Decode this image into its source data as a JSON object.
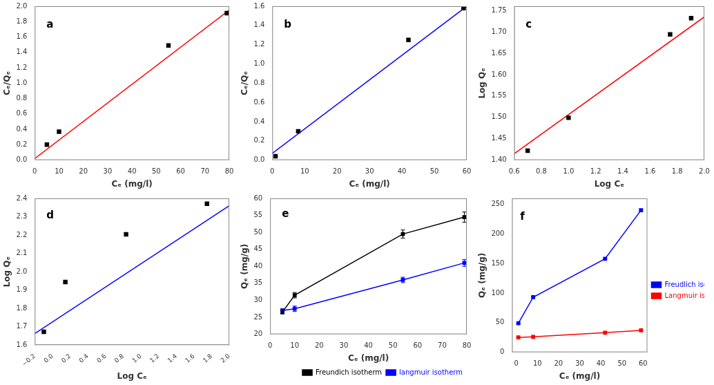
{
  "chart_data": [
    {
      "type": "scatter",
      "annotations": [
        "a"
      ],
      "xlabel": "Cₑ (mg/l)",
      "ylabel": "Cₑ/Qₑ",
      "xlim": [
        0,
        80
      ],
      "ylim": [
        0.0,
        2.0
      ],
      "xticks": [
        0,
        10,
        20,
        30,
        40,
        50,
        60,
        70,
        80
      ],
      "yticks": [
        {
          "value": 0.0,
          "label": "0.0"
        },
        0.2,
        0.4,
        0.6,
        0.8,
        {
          "value": 1.0,
          "label": "1.0"
        },
        1.2,
        1.4,
        1.6,
        1.8,
        {
          "value": 2.0,
          "label": "2.0"
        }
      ],
      "grid": false,
      "series": [
        {
          "type": "line",
          "x": [
            0,
            80
          ],
          "values": [
            0.02,
            1.95
          ],
          "color": "#ff0000",
          "line_style": "solid"
        },
        {
          "x": [
            5,
            10,
            55,
            79
          ],
          "values": [
            0.2,
            0.37,
            1.49,
            1.91
          ],
          "color": "#000000",
          "marker": "square"
        }
      ]
    },
    {
      "type": "scatter",
      "annotations": [
        "b"
      ],
      "xlabel": "Cₑ (mg/l)",
      "ylabel": "Cₑ/Qₑ",
      "xlim": [
        0,
        60
      ],
      "ylim": [
        0.0,
        1.6
      ],
      "xticks": [
        0,
        10,
        20,
        30,
        40,
        50,
        60
      ],
      "yticks": [
        {
          "value": 0.0,
          "label": "0.0"
        },
        0.2,
        0.4,
        0.6,
        0.8,
        {
          "value": 1.0,
          "label": "1.0"
        },
        1.2,
        1.4,
        1.6
      ],
      "grid": false,
      "series": [
        {
          "type": "line",
          "x": [
            0,
            60
          ],
          "values": [
            0.07,
            1.6
          ],
          "color": "#0000ff",
          "line_style": "solid"
        },
        {
          "x": [
            1,
            8,
            42,
            59
          ],
          "values": [
            0.04,
            0.3,
            1.25,
            1.58
          ],
          "color": "#000000",
          "marker": "square"
        }
      ]
    },
    {
      "type": "scatter",
      "annotations": [
        "c"
      ],
      "xlabel": "Log Cₑ",
      "ylabel": "Log Qₑ",
      "xlim": [
        0.6,
        2.0
      ],
      "ylim": [
        1.4,
        1.76
      ],
      "xticks": [
        0.6,
        0.8,
        {
          "value": 1.0,
          "label": "1.0"
        },
        1.2,
        1.4,
        1.6,
        1.8,
        {
          "value": 2.0,
          "label": "2.0"
        }
      ],
      "yticks": [
        {
          "value": 1.4,
          "label": "1.40"
        },
        1.45,
        {
          "value": 1.5,
          "label": "1.50"
        },
        1.55,
        {
          "value": 1.6,
          "label": "1.60"
        },
        1.65,
        {
          "value": 1.7,
          "label": "1.70"
        },
        1.75
      ],
      "grid": false,
      "series": [
        {
          "type": "line",
          "x": [
            0.6,
            2.0
          ],
          "values": [
            1.415,
            1.735
          ],
          "color": "#ff0000",
          "line_style": "solid"
        },
        {
          "x": [
            0.699,
            1.0,
            1.748,
            1.903
          ],
          "values": [
            1.422,
            1.499,
            1.694,
            1.732
          ],
          "color": "#000000",
          "marker": "square"
        }
      ]
    },
    {
      "type": "scatter",
      "annotations": [
        "d"
      ],
      "xlabel": "Log Cₑ",
      "ylabel": "Log Qₑ",
      "xlim": [
        -0.2,
        2.0
      ],
      "ylim": [
        1.6,
        2.4
      ],
      "xticks": [
        {
          "value": -0.2,
          "label": "−0.2"
        },
        {
          "value": 0.0,
          "label": "0.0"
        },
        0.2,
        0.4,
        0.6,
        0.8,
        {
          "value": 1.0,
          "label": "1.0"
        },
        1.2,
        1.4,
        1.6,
        1.8,
        {
          "value": 2.0,
          "label": "2.0"
        }
      ],
      "yticks": [
        1.6,
        1.7,
        1.8,
        1.9,
        {
          "value": 2.0,
          "label": "2.0"
        },
        2.1,
        2.2,
        2.3,
        2.4
      ],
      "grid": false,
      "series": [
        {
          "type": "line",
          "x": [
            -0.2,
            2.0
          ],
          "values": [
            1.662,
            2.36
          ],
          "color": "#0000ff",
          "line_style": "solid"
        },
        {
          "x": [
            -0.097,
            0.146,
            0.833,
            1.748
          ],
          "values": [
            1.672,
            1.944,
            2.204,
            2.371
          ],
          "color": "#000000",
          "marker": "square"
        }
      ]
    },
    {
      "type": "line",
      "annotations": [
        "e"
      ],
      "xlabel": "Cₑ (mg/l)",
      "ylabel": "Qₑ (mg/g)",
      "xlim": [
        0,
        80
      ],
      "ylim": [
        20,
        60
      ],
      "xticks": [
        0,
        10,
        20,
        30,
        40,
        50,
        60,
        70,
        80
      ],
      "yticks": [
        20,
        25,
        30,
        35,
        40,
        45,
        50,
        55,
        60
      ],
      "grid": false,
      "legend": "lower right",
      "series": [
        {
          "name": "langmuir isotherm",
          "x": [
            5,
            10,
            54,
            79
          ],
          "values": [
            27.0,
            27.5,
            36.0,
            41.0
          ],
          "errors": [
            0.5,
            0.8,
            0.8,
            1.0
          ],
          "color": "#0000ff",
          "marker": "square",
          "line_style": "solid"
        },
        {
          "name": "Freundich isotherm",
          "x": [
            5,
            10,
            54,
            79
          ],
          "values": [
            26.5,
            31.5,
            49.5,
            54.5
          ],
          "errors": [
            0.5,
            0.8,
            1.2,
            1.5
          ],
          "color": "#000000",
          "marker": "square",
          "line_style": "solid"
        }
      ]
    },
    {
      "type": "line",
      "annotations": [
        "f"
      ],
      "xlabel": "Cₑ (mg/l)",
      "ylabel": "Qₑ (mg/g)",
      "xlim": [
        -2,
        62
      ],
      "ylim": [
        0,
        260
      ],
      "xticks": [
        0,
        10,
        20,
        30,
        40,
        50,
        60
      ],
      "yticks": [
        0,
        50,
        100,
        150,
        200,
        250
      ],
      "grid": false,
      "legend": "center right",
      "series": [
        {
          "name": "Langmuir isotherm",
          "x": [
            1,
            8,
            42,
            59
          ],
          "values": [
            25,
            26,
            33,
            37
          ],
          "errors": [
            0.0,
            0.0,
            0.0,
            0.0
          ],
          "color": "#ff0000",
          "marker": "square",
          "line_style": "solid"
        },
        {
          "name": "Freudlich isotherm",
          "x": [
            1,
            8,
            42,
            59
          ],
          "values": [
            49,
            93,
            158,
            240
          ],
          "errors": [
            0.0,
            0.0,
            0.0,
            2.0
          ],
          "color": "#0000ff",
          "marker": "square",
          "line_style": "solid"
        }
      ]
    }
  ]
}
